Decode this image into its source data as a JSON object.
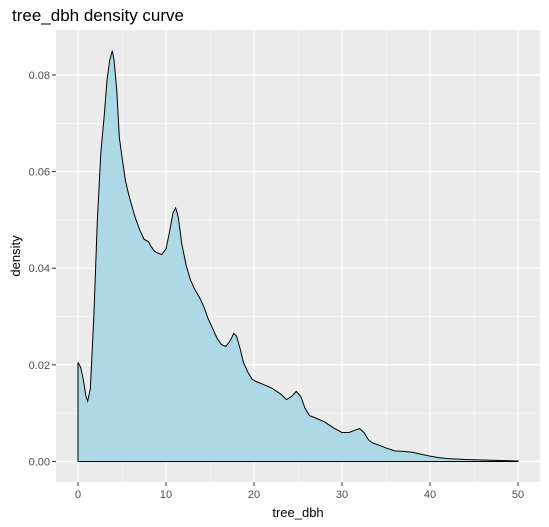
{
  "chart_data": {
    "type": "area",
    "title": "tree_dbh density curve",
    "xlabel": "tree_dbh",
    "ylabel": "density",
    "xlim": [
      -2.5,
      52.5
    ],
    "ylim": [
      -0.00425,
      0.0893
    ],
    "x_ticks": [
      0,
      10,
      20,
      30,
      40,
      50
    ],
    "x_tick_labels": [
      "0",
      "10",
      "20",
      "30",
      "40",
      "50"
    ],
    "y_ticks": [
      0,
      0.02,
      0.04,
      0.06,
      0.08
    ],
    "y_tick_labels": [
      "0.00",
      "0.02",
      "0.04",
      "0.06",
      "0.08"
    ],
    "grid": true,
    "fill_color": "#add8e6",
    "line_color": "#000000",
    "panel_color": "#ebebeb",
    "series": [
      {
        "x": [
          0,
          0.3,
          0.6,
          0.9,
          1.1,
          1.4,
          1.8,
          2.2,
          2.6,
          3.0,
          3.3,
          3.6,
          3.9,
          4.1,
          4.4,
          4.7,
          5.0,
          5.4,
          5.8,
          6.1,
          6.5,
          7.0,
          7.5,
          8.0,
          8.3,
          8.7,
          9.0,
          9.5,
          10.0,
          10.4,
          10.8,
          11.1,
          11.4,
          11.8,
          12.3,
          12.8,
          13.3,
          13.8,
          14.3,
          14.8,
          15.3,
          15.8,
          16.3,
          16.8,
          17.3,
          17.7,
          18.0,
          18.4,
          18.8,
          19.3,
          19.8,
          20.3,
          21.0,
          22.0,
          23.0,
          23.7,
          24.3,
          24.8,
          25.3,
          25.8,
          26.3,
          27.0,
          28.0,
          29.0,
          30.0,
          30.8,
          31.5,
          32.0,
          32.5,
          33.0,
          33.5,
          34.0,
          35.0,
          36.0,
          37.0,
          38.0,
          39.0,
          40.0,
          41.0,
          42.0,
          43.0,
          44.0,
          46.0,
          48.0,
          50.0
        ],
        "y": [
          0.0205,
          0.0195,
          0.017,
          0.0135,
          0.0125,
          0.015,
          0.03,
          0.05,
          0.064,
          0.072,
          0.079,
          0.083,
          0.085,
          0.083,
          0.077,
          0.067,
          0.063,
          0.058,
          0.055,
          0.053,
          0.0505,
          0.048,
          0.046,
          0.0455,
          0.0445,
          0.0435,
          0.0432,
          0.0428,
          0.044,
          0.0475,
          0.0515,
          0.0525,
          0.0505,
          0.045,
          0.0405,
          0.0375,
          0.0355,
          0.034,
          0.032,
          0.0295,
          0.0275,
          0.0255,
          0.0242,
          0.0238,
          0.025,
          0.0265,
          0.026,
          0.0235,
          0.0205,
          0.0185,
          0.017,
          0.0165,
          0.016,
          0.0152,
          0.014,
          0.0128,
          0.0135,
          0.0145,
          0.0135,
          0.011,
          0.0095,
          0.009,
          0.0082,
          0.007,
          0.006,
          0.006,
          0.0065,
          0.0068,
          0.006,
          0.0045,
          0.0038,
          0.0035,
          0.0028,
          0.0022,
          0.0021,
          0.0019,
          0.0015,
          0.0011,
          0.0008,
          0.0006,
          0.0005,
          0.0004,
          0.0003,
          0.0002,
          0.0001
        ]
      }
    ]
  }
}
